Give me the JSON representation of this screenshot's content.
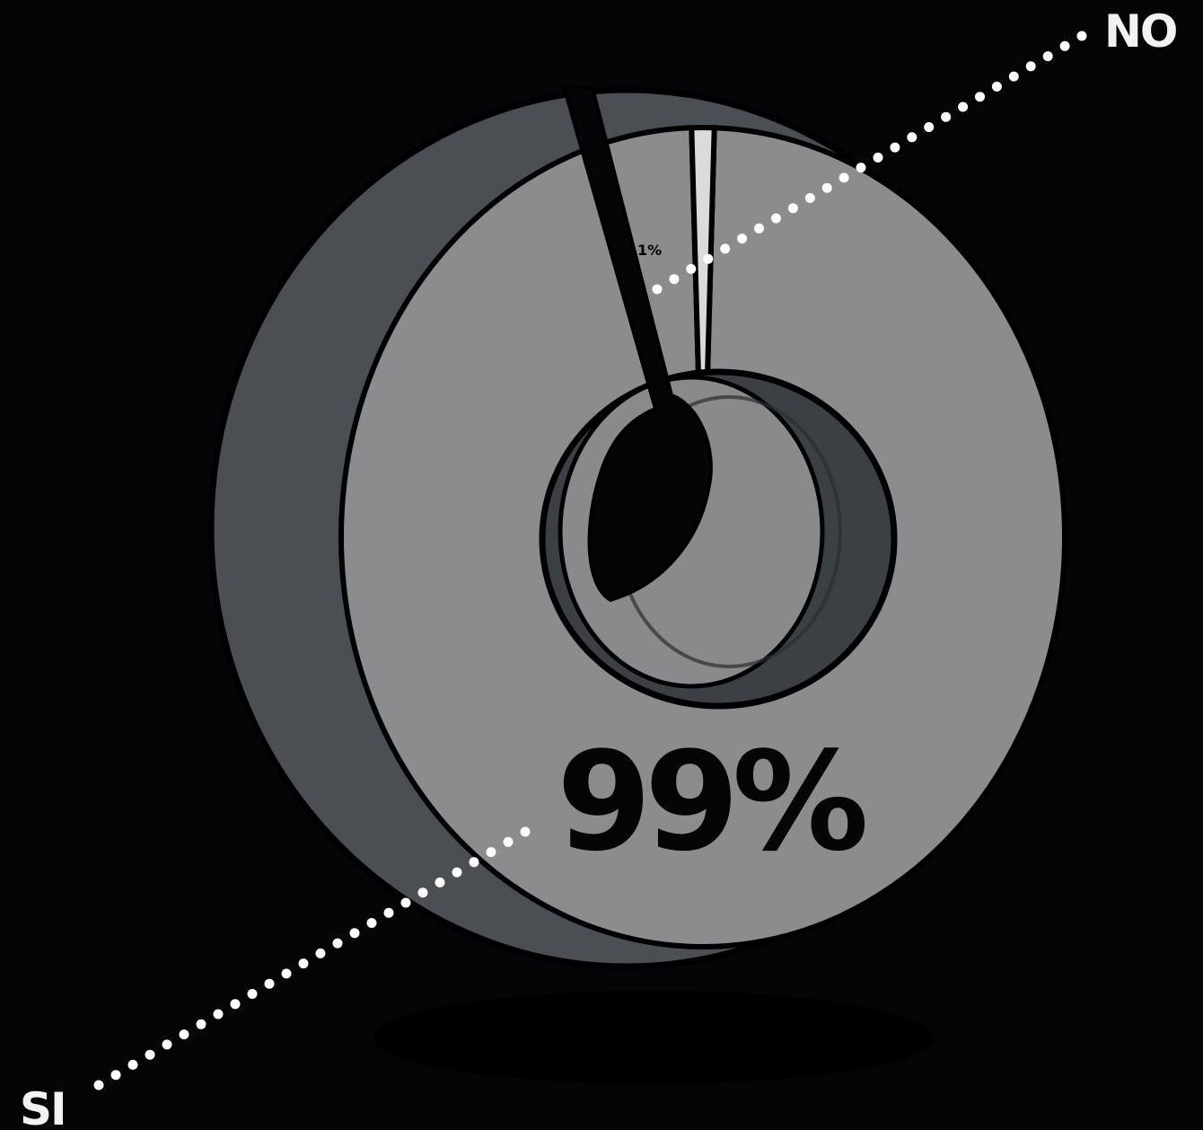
{
  "chart_data": {
    "type": "pie",
    "style": "3d-donut",
    "categories": [
      "SI",
      "NO"
    ],
    "values": [
      99,
      1
    ],
    "data_labels": [
      "99%",
      "1%"
    ],
    "colors": {
      "background": "#050508",
      "si_face": "#8a8c8d",
      "si_side": "#4b4e52",
      "no_face": "#dadcdb",
      "outline": "#000000",
      "leader": "#ffffff",
      "label": "#f2f2f2"
    }
  }
}
